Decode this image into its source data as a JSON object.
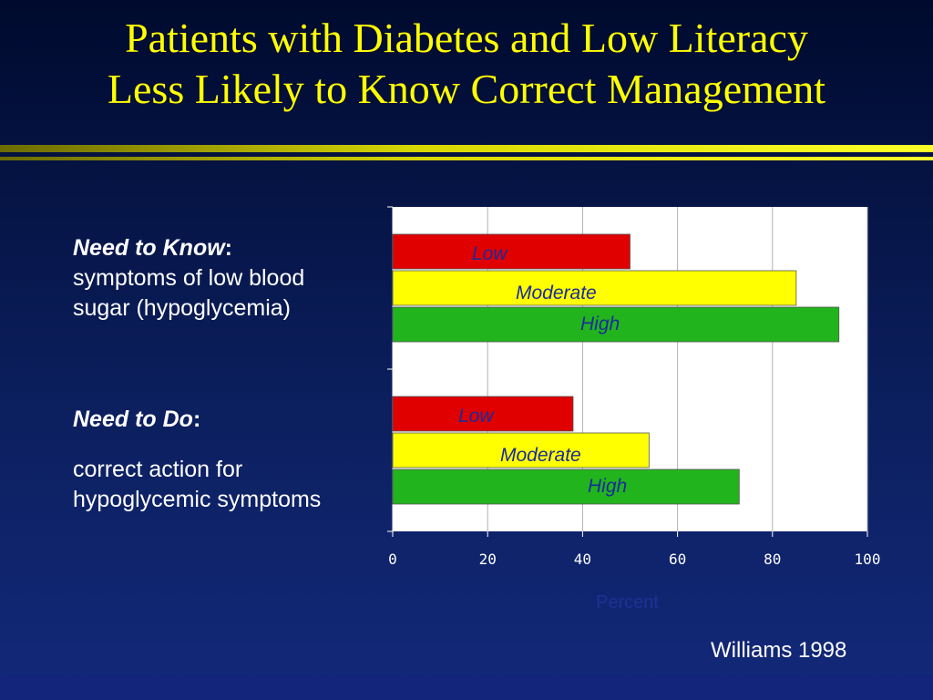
{
  "slide": {
    "title_line1": "Patients with Diabetes and Low Literacy",
    "title_line2": "Less Likely to Know Correct Management",
    "know_heading": "Need to Know",
    "know_colon": ":",
    "know_line1": "symptoms of low blood",
    "know_line2": "sugar (hypoglycemia)",
    "do_heading": "Need to Do",
    "do_colon": ":",
    "do_line1": "correct action for",
    "do_line2": "hypoglycemic symptoms",
    "source": "Williams 1998",
    "axis_caption": "Percent"
  },
  "colors": {
    "low": "#e00000",
    "moderate": "#ffff00",
    "high": "#22b41c",
    "plot_bg": "#ffffff",
    "gridline": "#b0b0b0",
    "title": "#ffff00"
  },
  "chart_data": {
    "type": "bar",
    "orientation": "horizontal",
    "categories": [
      "Need to Know",
      "Need to Do"
    ],
    "series": [
      {
        "name": "Low",
        "color": "#e00000",
        "values": [
          50,
          38
        ]
      },
      {
        "name": "Moderate",
        "color": "#ffff00",
        "values": [
          85,
          54
        ]
      },
      {
        "name": "High",
        "color": "#22b41c",
        "values": [
          94,
          73
        ]
      }
    ],
    "xlim": [
      0,
      100
    ],
    "xticks": [
      "0",
      "20",
      "40",
      "60",
      "80",
      "100"
    ],
    "grid": true,
    "xlabel": "Percent"
  }
}
